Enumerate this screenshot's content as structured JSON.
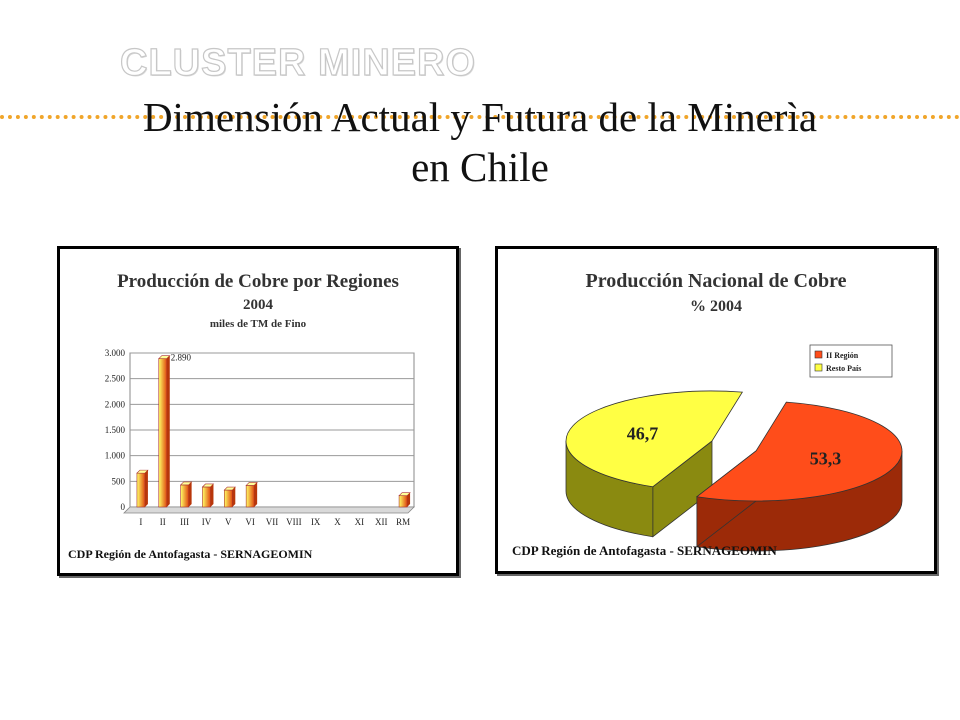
{
  "header": {
    "brand": "CLUSTER MINERO",
    "title_line1": "Dimensión Actual y Futura de la Minerìa",
    "title_line2": "en Chile"
  },
  "chart_data": [
    {
      "type": "bar",
      "title": "Producción de Cobre por Regiones",
      "subtitle": "2004",
      "unit_label": "miles de TM de Fino",
      "categories": [
        "I",
        "II",
        "III",
        "IV",
        "V",
        "VI",
        "VII",
        "VIII",
        "IX",
        "X",
        "XI",
        "XII",
        "RM"
      ],
      "values": [
        660,
        2890,
        430,
        390,
        330,
        420,
        0,
        0,
        0,
        0,
        0,
        0,
        220
      ],
      "data_labels": [
        {
          "category": "II",
          "text": "2.890"
        }
      ],
      "ylim": [
        0,
        3000
      ],
      "yticks": [
        0,
        500,
        1000,
        1500,
        2000,
        2500,
        3000
      ],
      "ytick_labels": [
        "0",
        "500",
        "1.000",
        "1.500",
        "2.000",
        "2.500",
        "3.000"
      ],
      "grid": true,
      "source": "CDP Región de Antofagasta - SERNAGEOMIN",
      "colors": {
        "bar_light": "#ffff66",
        "bar_dark": "#e04a10",
        "plot_bg": "#ffffff"
      }
    },
    {
      "type": "pie",
      "title": "Producción Nacional de Cobre",
      "subtitle": "% 2004",
      "labels": [
        "II Región",
        "Resto País"
      ],
      "values": [
        53.3,
        46.7
      ],
      "value_labels": [
        "53,3",
        "46,7"
      ],
      "colors": [
        "#ff4d1a",
        "#ffff44"
      ],
      "side_colors": [
        "#9c2a08",
        "#8a8a10"
      ],
      "legend_position": "top-right",
      "source": "CDP Región de Antofagasta - SERNAGEOMIN"
    }
  ]
}
